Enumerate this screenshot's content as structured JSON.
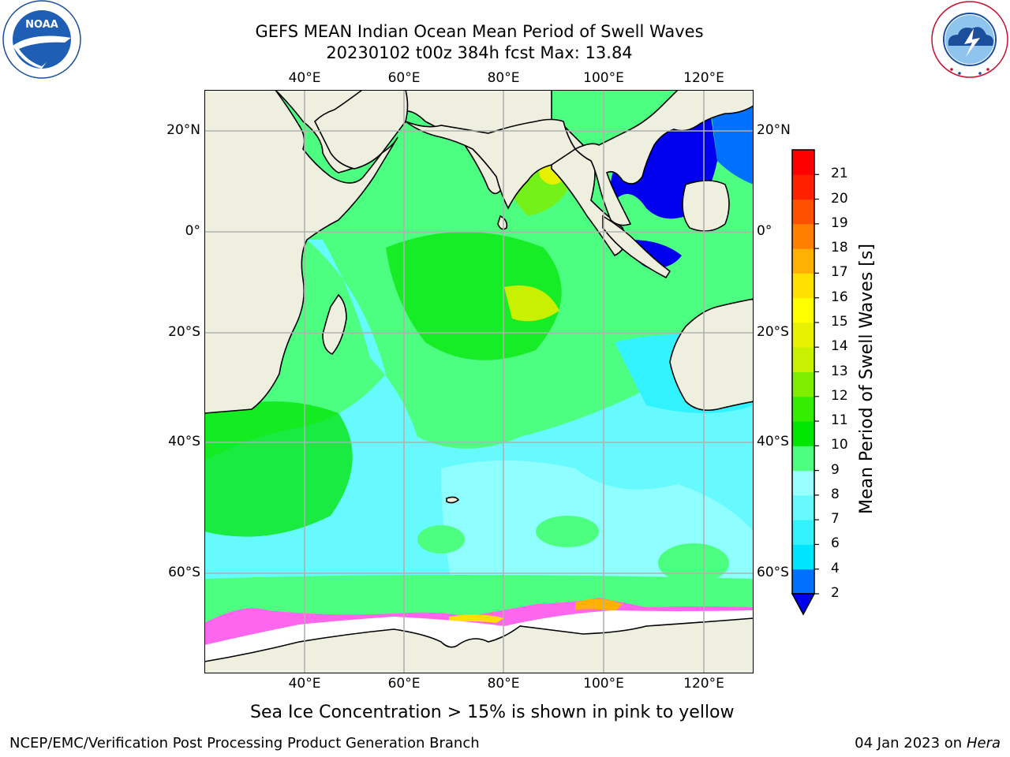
{
  "title": {
    "line1": "GEFS MEAN Indian Ocean Mean Period of Swell Waves",
    "line2": "20230102 t00z 384h fcst   Max: 13.84"
  },
  "logos": {
    "noaa": {
      "text": "NOAA",
      "ring_text": "NATIONAL OCEANIC AND ATMOSPHERIC ADMINISTRATION · U.S. DEPARTMENT OF COMMERCE"
    },
    "nws": {
      "ring_text": "NATIONAL WEATHER SERVICE"
    }
  },
  "map": {
    "lon_ticks": [
      "40°E",
      "60°E",
      "80°E",
      "100°E",
      "120°E"
    ],
    "lat_ticks": [
      "20°N",
      "0°",
      "20°S",
      "40°S",
      "60°S"
    ],
    "land_color": "#efefdf",
    "grid_color": "#b0b0b0"
  },
  "colorbar": {
    "title": "Mean Period of Swell Waves [s]",
    "levels": [
      "2",
      "4",
      "6",
      "7",
      "8",
      "9",
      "10",
      "11",
      "12",
      "13",
      "14",
      "15",
      "16",
      "17",
      "18",
      "19",
      "20",
      "21"
    ],
    "colors": [
      "#0070ff",
      "#00e5ff",
      "#33f2ff",
      "#66faff",
      "#99ffff",
      "#4dff80",
      "#00e600",
      "#33ee00",
      "#80ee00",
      "#c8f000",
      "#e6f000",
      "#ffff00",
      "#ffe000",
      "#ffb000",
      "#ff8000",
      "#ff5000",
      "#ff2000",
      "#ff0000"
    ],
    "under_color": "#0000ee"
  },
  "caption": "Sea Ice Concentration > 15% is shown in pink to yellow",
  "footer": {
    "left": "NCEP/EMC/Verification Post Processing Product Generation Branch",
    "right_date": "04 Jan 2023 on ",
    "right_host": "Hera"
  }
}
